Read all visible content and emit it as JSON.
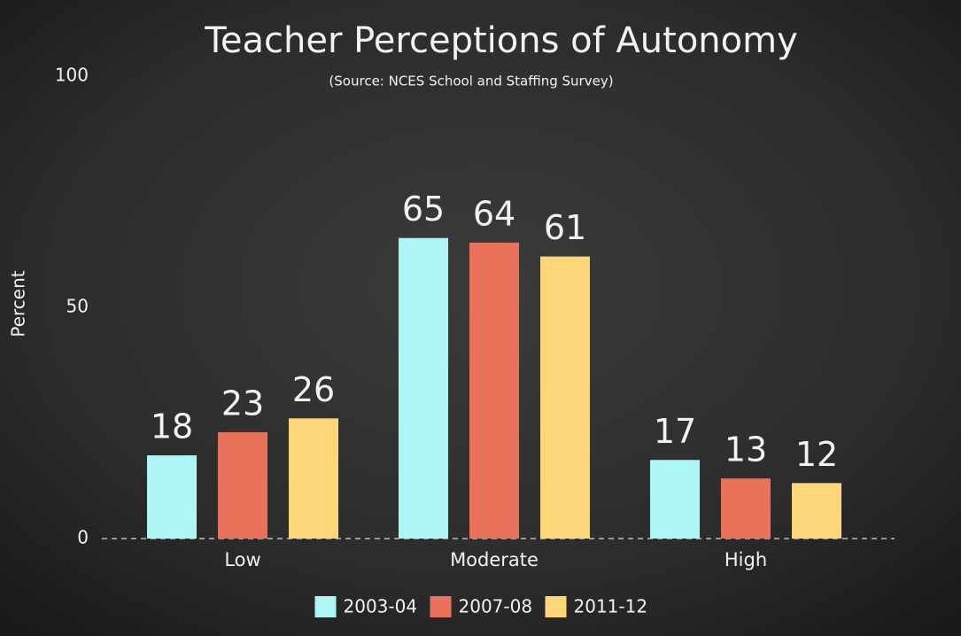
{
  "chart_data": {
    "type": "bar",
    "title": "Teacher Perceptions of Autonomy",
    "subtitle": "(Source: NCES School and Staffing Survey)",
    "y_label": "Percent",
    "categories": [
      "Low",
      "Moderate",
      "High"
    ],
    "series": [
      {
        "name": "2003-04",
        "color": "#aef6f6",
        "values": [
          18,
          65,
          17
        ]
      },
      {
        "name": "2007-08",
        "color": "#e8735a",
        "values": [
          23,
          64,
          13
        ]
      },
      {
        "name": "2011-12",
        "color": "#fdd67a",
        "values": [
          26,
          61,
          12
        ]
      }
    ],
    "ylim": [
      0,
      100
    ],
    "yticks": [
      0,
      50,
      100
    ],
    "grid": false
  }
}
